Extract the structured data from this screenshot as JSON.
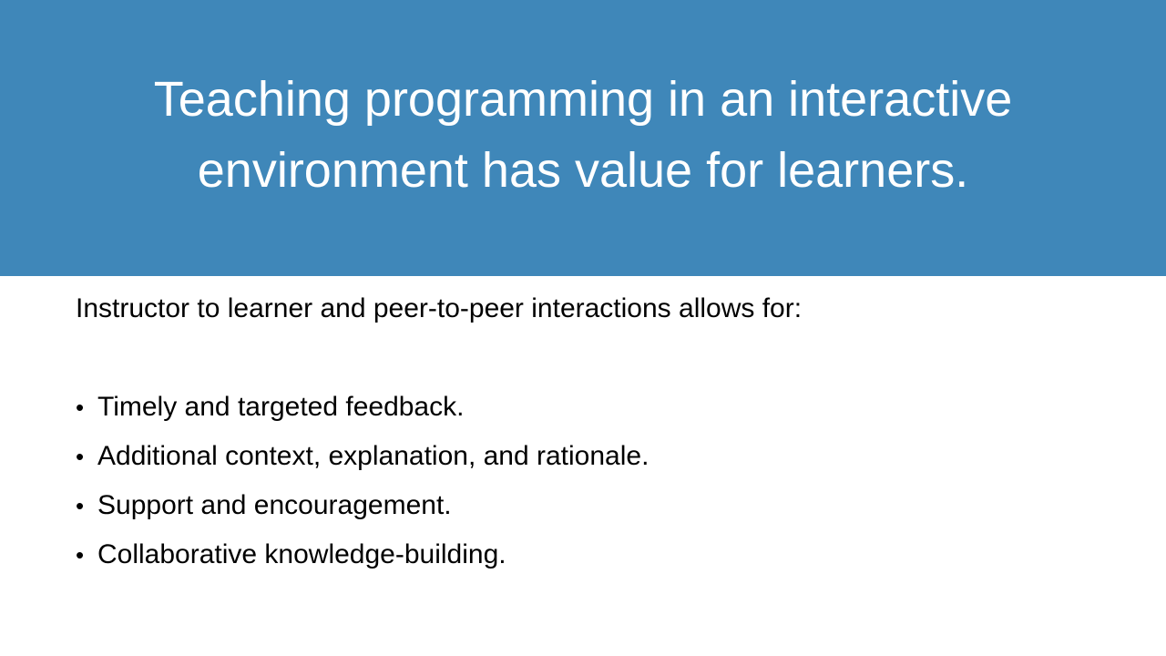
{
  "slide": {
    "title": "Teaching programming in an interactive environment has value for learners.",
    "intro": "Instructor to learner and peer-to-peer interactions allows for:",
    "bullet_glyph": "•",
    "bullets": [
      "Timely and targeted feedback.",
      "Additional context, explanation, and rationale.",
      "Support and encouragement.",
      "Collaborative knowledge-building."
    ]
  },
  "colors": {
    "title_band": "#3f87b9",
    "title_text": "#ffffff",
    "body_text": "#000000",
    "background": "#ffffff"
  }
}
